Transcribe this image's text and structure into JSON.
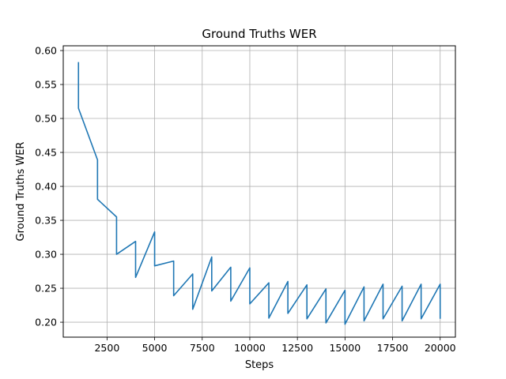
{
  "chart_data": {
    "type": "line",
    "title": "Ground Truths WER",
    "xlabel": "Steps",
    "ylabel": "Ground Truths WER",
    "xlim": [
      200,
      20800
    ],
    "ylim": [
      0.178,
      0.607
    ],
    "grid": true,
    "xticks": [
      2500,
      5000,
      7500,
      10000,
      12500,
      15000,
      17500,
      20000
    ],
    "xtick_labels": [
      "2500",
      "5000",
      "7500",
      "10000",
      "12500",
      "15000",
      "17500",
      "20000"
    ],
    "yticks": [
      0.2,
      0.25,
      0.3,
      0.35,
      0.4,
      0.45,
      0.5,
      0.55,
      0.6
    ],
    "ytick_labels": [
      "0.20",
      "0.25",
      "0.30",
      "0.35",
      "0.40",
      "0.45",
      "0.50",
      "0.55",
      "0.60"
    ],
    "line_color": "#1f77b4",
    "series": [
      {
        "x": [
          1000,
          1000,
          2000,
          2000,
          3000,
          3000,
          4000,
          4000,
          5000,
          5000,
          6000,
          6000,
          7000,
          7000,
          8000,
          8000,
          9000,
          9000,
          10000,
          10000,
          11000,
          11000,
          12000,
          12000,
          13000,
          13000,
          14000,
          14000,
          15000,
          15000,
          16000,
          16000,
          17000,
          17000,
          18000,
          18000,
          19000,
          19000,
          20000,
          20000
        ],
        "y": [
          0.583,
          0.515,
          0.439,
          0.381,
          0.355,
          0.3,
          0.319,
          0.266,
          0.333,
          0.283,
          0.29,
          0.239,
          0.271,
          0.219,
          0.296,
          0.246,
          0.281,
          0.231,
          0.28,
          0.227,
          0.258,
          0.206,
          0.26,
          0.213,
          0.255,
          0.205,
          0.249,
          0.199,
          0.247,
          0.197,
          0.252,
          0.202,
          0.256,
          0.205,
          0.253,
          0.202,
          0.256,
          0.205,
          0.256,
          0.205
        ]
      }
    ]
  }
}
